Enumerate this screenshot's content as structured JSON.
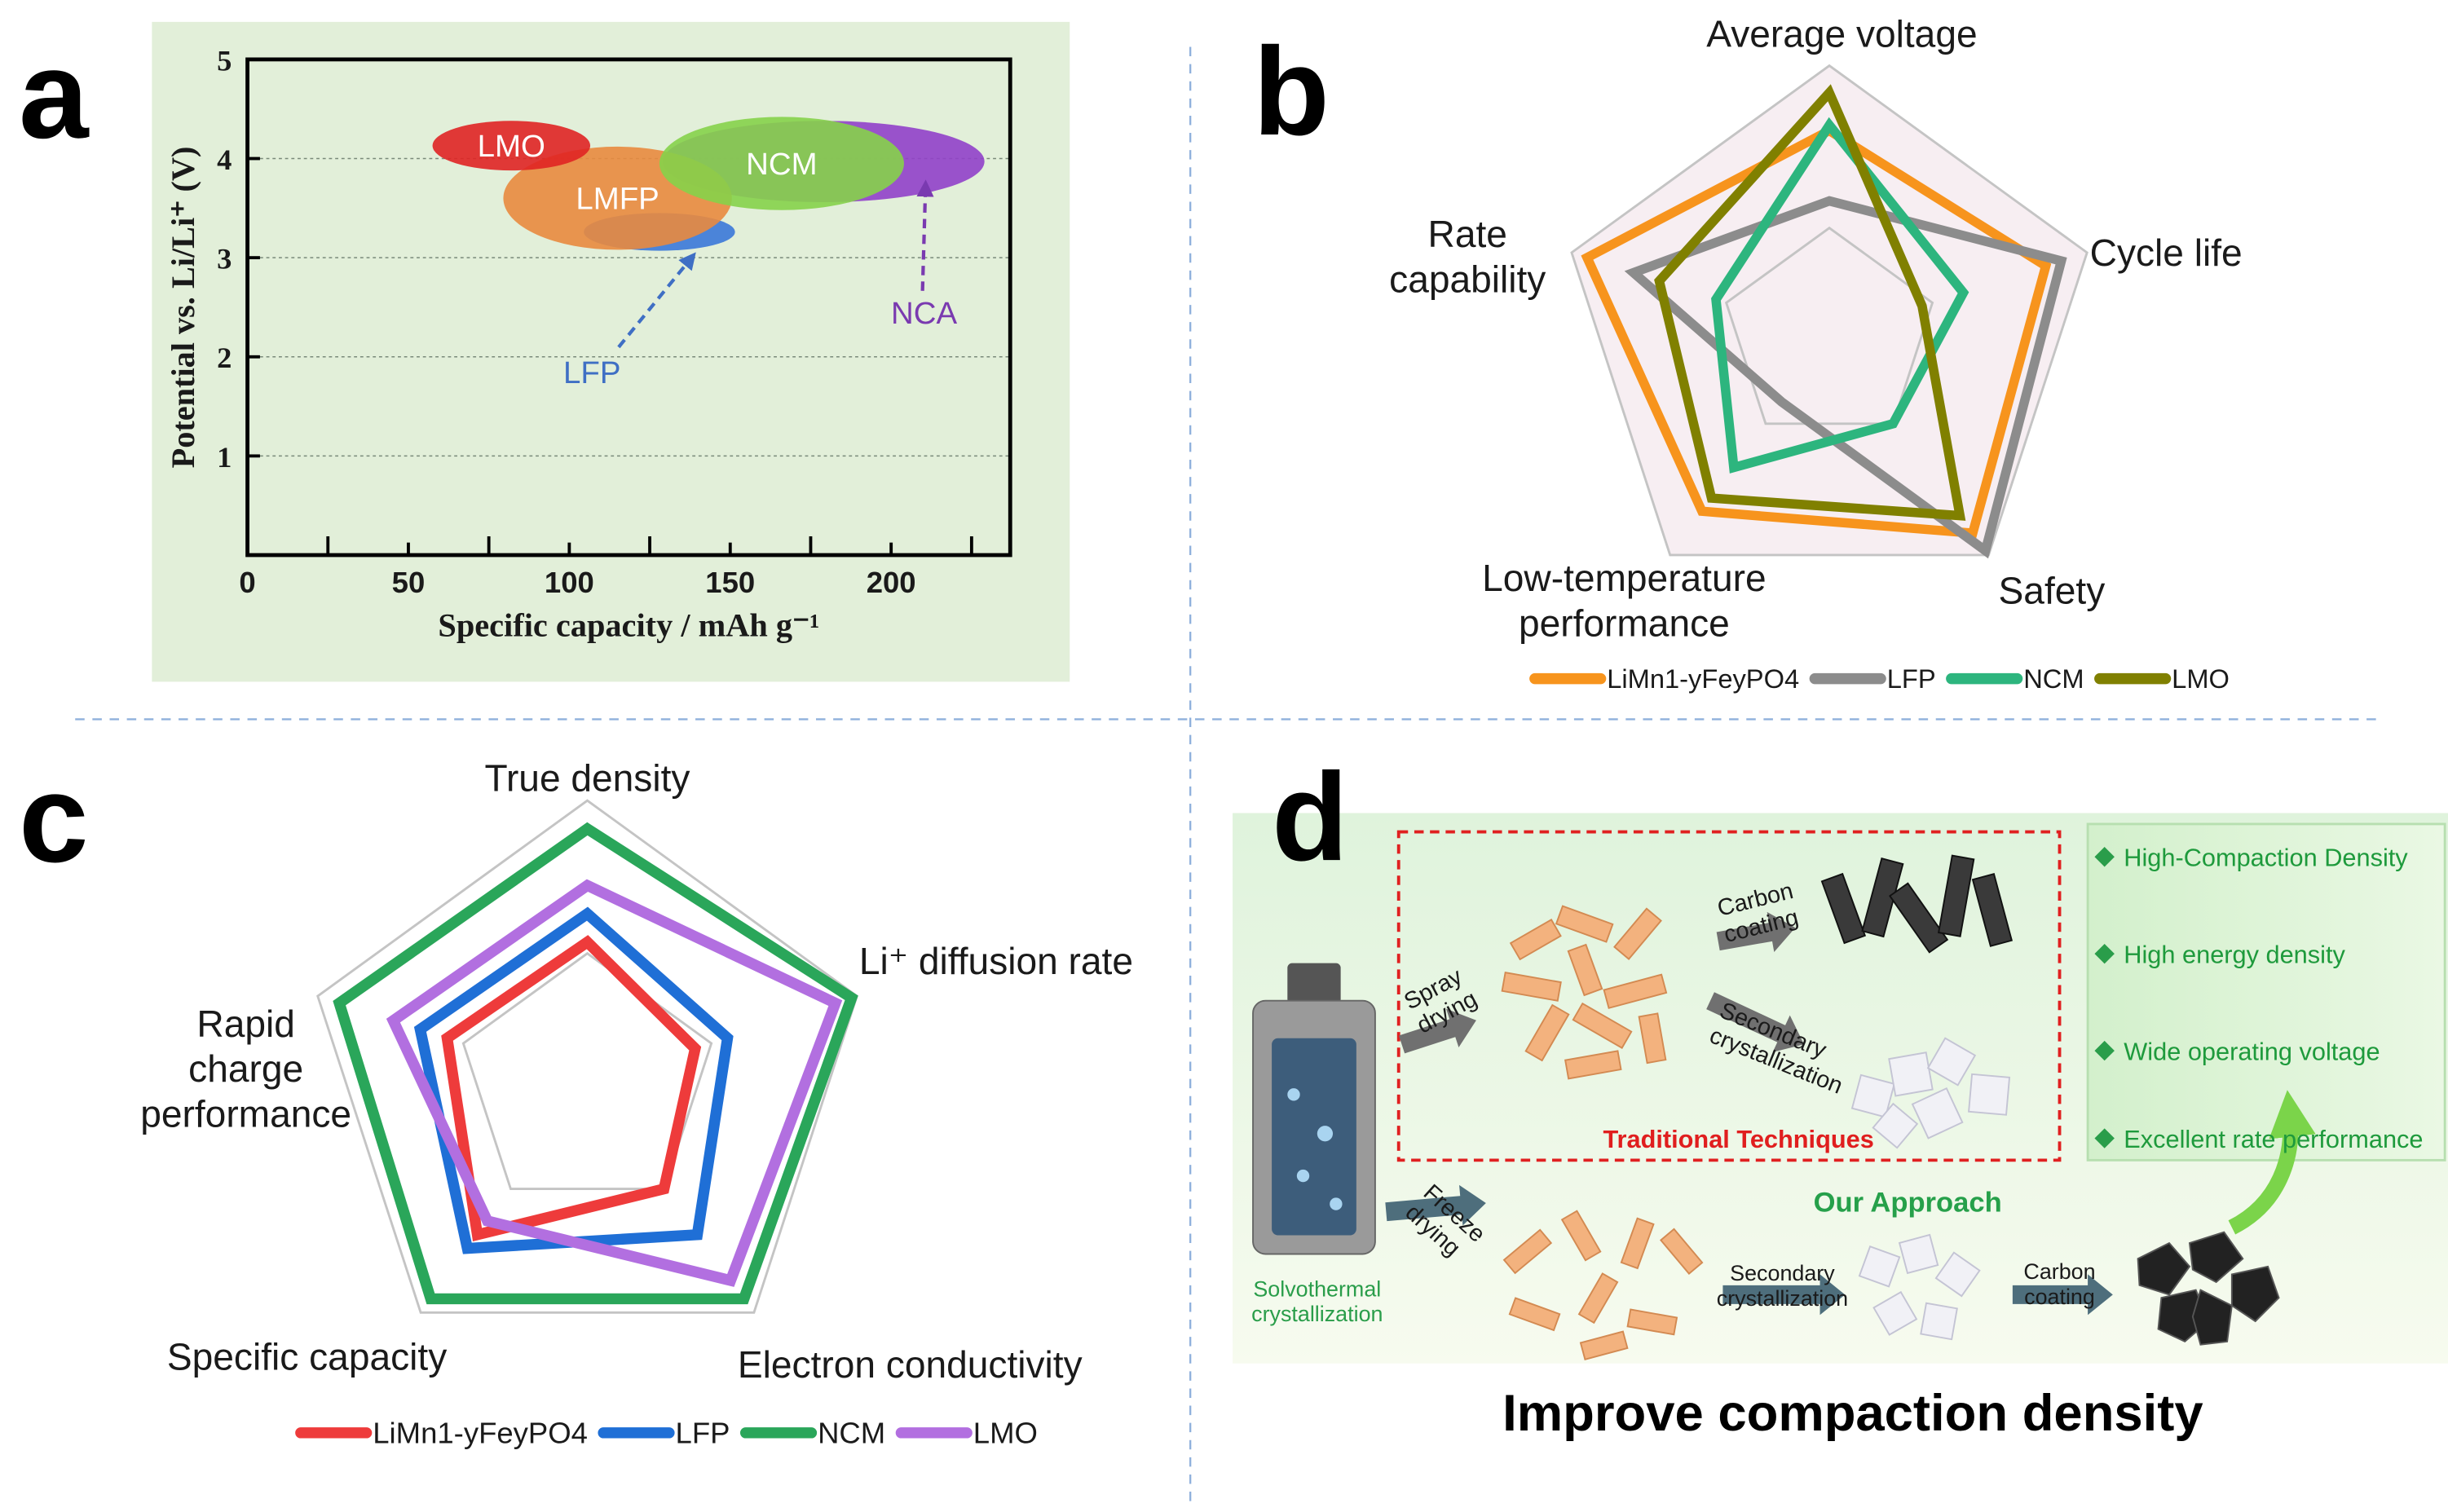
{
  "chart_data": [
    {
      "type": "ellipse",
      "label": "a",
      "xlabel": "Specific capacity / mAh g⁻¹",
      "ylabel": "Potential vs. Li/Li⁺ (V)",
      "xlim": [
        0,
        237
      ],
      "ylim": [
        0,
        5
      ],
      "xticks": [
        0,
        50,
        100,
        150,
        200
      ],
      "xminorticks": [
        25,
        75,
        125,
        175,
        225
      ],
      "yticks": [
        1,
        2,
        3,
        4,
        5
      ],
      "grid": true,
      "background": "#e2efd9",
      "series": [
        {
          "name": "LFP",
          "color": "#3b78d8",
          "x": 128,
          "y": 3.26,
          "width": 47,
          "height": 0.38
        },
        {
          "name": "NCA",
          "color": "#9140c9",
          "x": 179,
          "y": 3.97,
          "width": 100,
          "height": 0.82
        },
        {
          "name": "LMFP",
          "color": "#e98a3e",
          "x": 115,
          "y": 3.6,
          "width": 71,
          "height": 1.04
        },
        {
          "name": "NCM",
          "color": "#86d14a",
          "x": 166,
          "y": 3.95,
          "width": 76,
          "height": 0.94
        },
        {
          "name": "LMO",
          "color": "#e02424",
          "x": 82,
          "y": 4.13,
          "width": 49,
          "height": 0.5
        }
      ]
    },
    {
      "type": "radar",
      "label": "b",
      "axes": [
        "Average voltage",
        "Cycle life",
        "Safety",
        "Low-temperature performance",
        "Rate capability"
      ],
      "rlim": [
        0,
        5
      ],
      "rgrid": [
        2,
        5
      ],
      "background": "#f7eef2",
      "legend": "bottom",
      "series": [
        {
          "name": "LiMn1-yFeyPO4",
          "color": "#f7941d",
          "values": [
            3.8,
            4.2,
            4.5,
            4,
            4.7
          ]
        },
        {
          "name": "LFP",
          "color": "#8c8c8c",
          "values": [
            2.5,
            4.5,
            4.9,
            1.5,
            3.8
          ]
        },
        {
          "name": "NCM",
          "color": "#2db57e",
          "values": [
            3.9,
            2.6,
            2,
            3,
            2.2
          ]
        },
        {
          "name": "LMO",
          "color": "#808000",
          "values": [
            4.5,
            1.8,
            4.1,
            3.7,
            3.3
          ]
        }
      ]
    },
    {
      "type": "radar",
      "label": "c",
      "axes": [
        "True density",
        "Li⁺ diffusion rate",
        "Electron conductivity",
        "Specific capacity",
        "Rapid charge performance"
      ],
      "rlim": [
        0,
        5
      ],
      "rgrid": [
        2.3,
        5
      ],
      "legend": "bottom",
      "series": [
        {
          "name": "LiMn1-yFeyPO4",
          "color": "#ee3b3b",
          "values": [
            2.5,
            2,
            2.3,
            3.3,
            2.6
          ]
        },
        {
          "name": "LFP",
          "color": "#1f6fd6",
          "values": [
            3,
            2.6,
            3.3,
            3.6,
            3.1
          ]
        },
        {
          "name": "NCM",
          "color": "#2aa65a",
          "values": [
            4.5,
            4.9,
            4.7,
            4.7,
            4.6
          ]
        },
        {
          "name": "LMO",
          "color": "#b26fe0",
          "values": [
            3.5,
            4.6,
            4.3,
            3,
            3.6
          ]
        }
      ]
    }
  ],
  "diagram": {
    "label": "d",
    "traditional": {
      "title": "Traditional Techniques",
      "steps": [
        "Spray drying",
        "Carbon coating",
        "Secondary crystallization"
      ]
    },
    "approach": {
      "title": "Our Approach",
      "start": "Solvothermal crystallization",
      "steps": [
        "Freeze drying",
        "Secondary crystallization",
        "Carbon coating"
      ]
    },
    "advantages": [
      "High-Compaction Density",
      "High energy density",
      "Wide operating voltage",
      "Excellent rate performance"
    ],
    "caption": "Improve compaction density"
  }
}
